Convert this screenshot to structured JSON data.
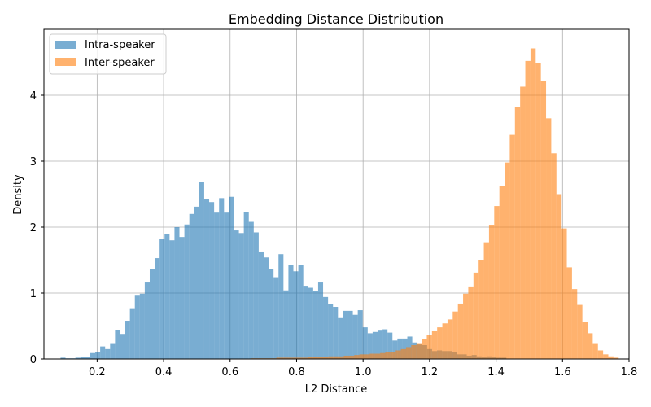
{
  "chart_data": {
    "type": "histogram",
    "title": "Embedding Distance Distribution",
    "xlabel": "L2 Distance",
    "ylabel": "Density",
    "xlim": [
      0.04,
      1.8
    ],
    "ylim": [
      0,
      5.0
    ],
    "xticks": [
      0.2,
      0.4,
      0.6,
      0.8,
      1.0,
      1.2,
      1.4,
      1.6,
      1.8
    ],
    "xtick_labels": [
      "0.2",
      "0.4",
      "0.6",
      "0.8",
      "1.0",
      "1.2",
      "1.4",
      "1.6",
      "1.8"
    ],
    "yticks": [
      0,
      1,
      2,
      3,
      4
    ],
    "ytick_labels": [
      "0",
      "1",
      "2",
      "3",
      "4"
    ],
    "grid": true,
    "legend_position": "top-left",
    "series": [
      {
        "name": "Intra-speaker",
        "color": "#1f77b4",
        "opacity": 0.6,
        "bin_start": 0.09,
        "bin_width": 0.0149,
        "values": [
          0.02,
          0.01,
          0.01,
          0.02,
          0.03,
          0.03,
          0.09,
          0.11,
          0.19,
          0.15,
          0.24,
          0.44,
          0.38,
          0.58,
          0.77,
          0.96,
          0.99,
          1.16,
          1.37,
          1.53,
          1.82,
          1.9,
          1.8,
          2.0,
          1.85,
          2.04,
          2.2,
          2.31,
          2.68,
          2.43,
          2.38,
          2.22,
          2.44,
          2.22,
          2.46,
          1.95,
          1.91,
          2.23,
          2.08,
          1.92,
          1.63,
          1.54,
          1.36,
          1.24,
          1.59,
          1.04,
          1.42,
          1.33,
          1.42,
          1.11,
          1.08,
          1.03,
          1.16,
          0.94,
          0.83,
          0.79,
          0.62,
          0.73,
          0.73,
          0.67,
          0.74,
          0.48,
          0.39,
          0.41,
          0.43,
          0.45,
          0.4,
          0.28,
          0.31,
          0.31,
          0.34,
          0.25,
          0.22,
          0.21,
          0.15,
          0.12,
          0.13,
          0.12,
          0.12,
          0.1,
          0.07,
          0.07,
          0.05,
          0.06,
          0.04,
          0.03,
          0.04,
          0.03,
          0.02,
          0.02
        ]
      },
      {
        "name": "Inter-speaker",
        "color": "#ff7f0e",
        "opacity": 0.6,
        "bin_start": 0.63,
        "bin_width": 0.0156,
        "values": [
          0.005,
          0.005,
          0.01,
          0.01,
          0.01,
          0.01,
          0.01,
          0.02,
          0.02,
          0.02,
          0.02,
          0.02,
          0.02,
          0.03,
          0.03,
          0.03,
          0.03,
          0.04,
          0.04,
          0.04,
          0.05,
          0.05,
          0.06,
          0.07,
          0.07,
          0.08,
          0.08,
          0.09,
          0.1,
          0.11,
          0.13,
          0.15,
          0.18,
          0.21,
          0.24,
          0.3,
          0.36,
          0.42,
          0.48,
          0.54,
          0.6,
          0.72,
          0.84,
          0.99,
          1.1,
          1.31,
          1.5,
          1.77,
          2.03,
          2.32,
          2.62,
          2.98,
          3.4,
          3.82,
          4.13,
          4.52,
          4.71,
          4.49,
          4.22,
          3.65,
          3.12,
          2.5,
          1.98,
          1.39,
          1.06,
          0.82,
          0.56,
          0.39,
          0.24,
          0.13,
          0.07,
          0.04,
          0.02
        ]
      }
    ]
  }
}
